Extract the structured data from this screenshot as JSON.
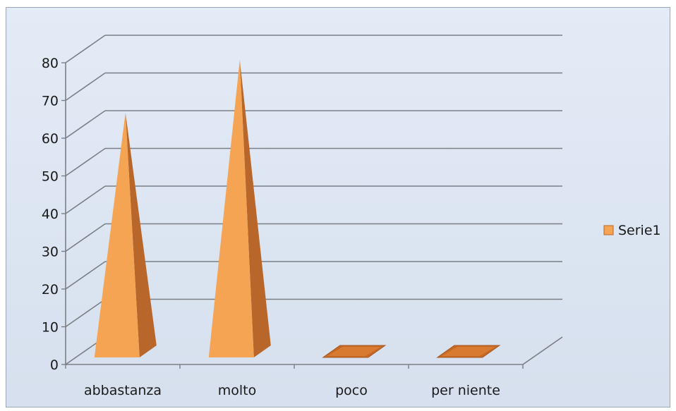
{
  "chart_data": {
    "type": "bar",
    "categories": [
      "abbastanza",
      "molto",
      "poco",
      "per niente"
    ],
    "series": [
      {
        "name": "Serie1",
        "values": [
          66,
          80,
          0,
          0
        ],
        "color": "#f5a454"
      }
    ],
    "y_ticks": [
      "0",
      "10",
      "20",
      "30",
      "40",
      "50",
      "60",
      "70",
      "80"
    ],
    "ylim": [
      0,
      80
    ],
    "grid": true,
    "legend_position": "right",
    "title": "",
    "xlabel": "",
    "ylabel": ""
  }
}
